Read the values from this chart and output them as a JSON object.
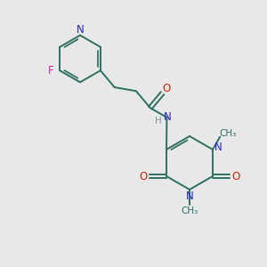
{
  "bg_color": "#e8e8e8",
  "bond_color": "#2d7060",
  "N_color": "#2222cc",
  "O_color": "#cc2200",
  "F_color": "#cc22aa",
  "H_color": "#7a9a90",
  "figsize": [
    3.0,
    3.0
  ],
  "dpi": 100,
  "xlim": [
    0,
    10
  ],
  "ylim": [
    0,
    10
  ]
}
